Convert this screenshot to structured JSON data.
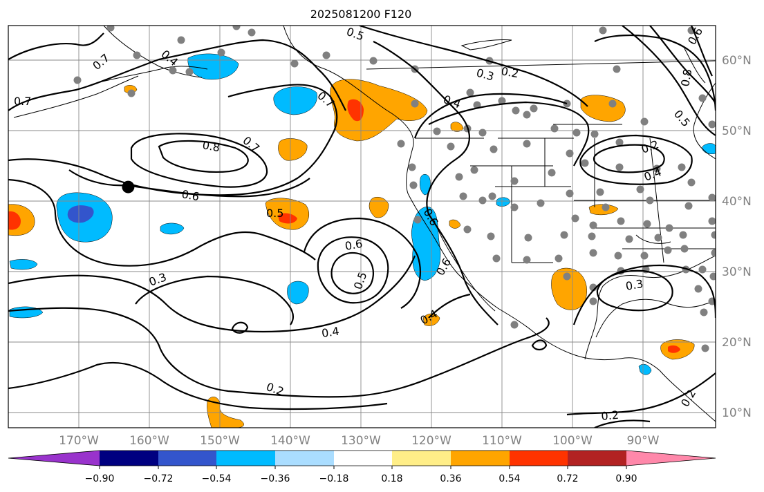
{
  "title": "2025081200 F120",
  "axes": {
    "longitude_labels": [
      "170°W",
      "160°W",
      "150°W",
      "140°W",
      "130°W",
      "120°W",
      "110°W",
      "100°W",
      "90°W"
    ],
    "latitude_labels": [
      "60°N",
      "50°N",
      "40°N",
      "30°N",
      "20°N",
      "10°N"
    ]
  },
  "colorbar": {
    "tick_labels": [
      "−0.90",
      "−0.72",
      "−0.54",
      "−0.36",
      "−0.18",
      "0.18",
      "0.36",
      "0.54",
      "0.72",
      "0.90"
    ],
    "under_color": "#9933cc",
    "over_color": "#ff88aa",
    "colors": [
      "#000080",
      "#3355cc",
      "#00bbff",
      "#aaddff",
      "#ffffff",
      "#ffee88",
      "#ffa500",
      "#ff3300",
      "#b22222"
    ]
  },
  "contour_labels": [
    {
      "text": "0.8"
    },
    {
      "text": "0.7"
    },
    {
      "text": "0.7"
    },
    {
      "text": "0.7"
    },
    {
      "text": "0.6"
    },
    {
      "text": "0.6"
    },
    {
      "text": "0.6"
    },
    {
      "text": "0.5"
    },
    {
      "text": "0.5"
    },
    {
      "text": "0.5"
    },
    {
      "text": "0.4"
    },
    {
      "text": "0.4"
    },
    {
      "text": "0.4"
    },
    {
      "text": "0.4"
    },
    {
      "text": "0.3"
    },
    {
      "text": "0.3"
    },
    {
      "text": "0.3"
    },
    {
      "text": "0.2"
    },
    {
      "text": "0.2"
    },
    {
      "text": "0.2"
    },
    {
      "text": "0.2"
    },
    {
      "text": "0.2"
    },
    {
      "text": "0.6"
    },
    {
      "text": "0.8"
    },
    {
      "text": "0.7"
    },
    {
      "text": "0.6"
    },
    {
      "text": "0.4"
    },
    {
      "text": "0.5"
    }
  ],
  "marker": {
    "lon": -163.0,
    "lat": 42.0
  }
}
